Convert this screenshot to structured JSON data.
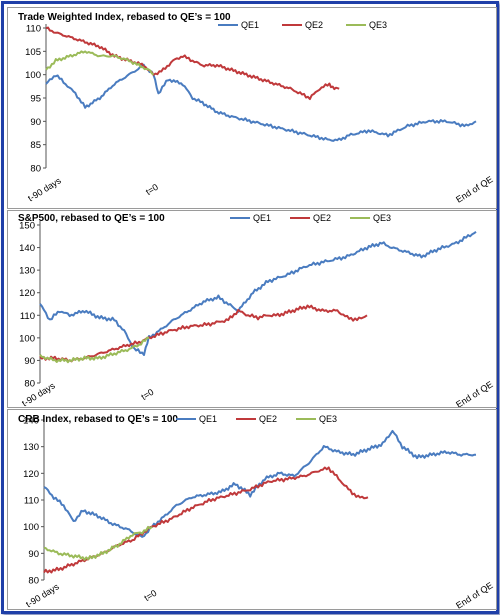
{
  "colors": {
    "QE1": "#4a7cc0",
    "QE2": "#c0393b",
    "QE3": "#9bbb59",
    "frame": "#1f3fa8"
  },
  "chart_data": [
    {
      "type": "line",
      "title": "Trade Weighted Index, rebased to QE’s = 100",
      "legend": [
        "QE1",
        "QE2",
        "QE3"
      ],
      "legend_position": "top",
      "ylim": [
        80,
        110
      ],
      "yticks": [
        80,
        85,
        90,
        95,
        100,
        105,
        110
      ],
      "x_tick_labels": [
        "t-90 days",
        "t=0",
        "End of QE"
      ],
      "grid": false,
      "series": [
        {
          "name": "QE1",
          "points": [
            [
              0,
              98
            ],
            [
              10,
              100
            ],
            [
              20,
              98
            ],
            [
              30,
              96
            ],
            [
              40,
              93
            ],
            [
              55,
              95
            ],
            [
              70,
              98
            ],
            [
              85,
              100
            ],
            [
              100,
              102
            ],
            [
              110,
              100
            ],
            [
              115,
              96
            ],
            [
              125,
              99
            ],
            [
              140,
              98
            ],
            [
              150,
              95
            ],
            [
              160,
              94
            ],
            [
              175,
              92
            ],
            [
              190,
              91
            ],
            [
              210,
              90
            ],
            [
              230,
              89
            ],
            [
              250,
              88
            ],
            [
              270,
              87
            ],
            [
              290,
              86
            ],
            [
              300,
              86
            ],
            [
              310,
              87
            ],
            [
              330,
              88
            ],
            [
              350,
              87
            ],
            [
              370,
              89
            ],
            [
              390,
              90
            ],
            [
              410,
              90
            ],
            [
              430,
              89
            ],
            [
              440,
              90
            ]
          ]
        },
        {
          "name": "QE2",
          "points": [
            [
              0,
              110
            ],
            [
              10,
              109
            ],
            [
              25,
              108
            ],
            [
              40,
              107
            ],
            [
              55,
              106
            ],
            [
              70,
              104
            ],
            [
              85,
              103
            ],
            [
              100,
              102
            ],
            [
              110,
              100
            ],
            [
              120,
              101
            ],
            [
              130,
              103
            ],
            [
              140,
              104
            ],
            [
              150,
              103
            ],
            [
              160,
              102
            ],
            [
              175,
              102
            ],
            [
              190,
              101
            ],
            [
              205,
              100
            ],
            [
              220,
              99
            ],
            [
              235,
              98
            ],
            [
              250,
              97
            ],
            [
              260,
              96
            ],
            [
              270,
              95
            ],
            [
              280,
              97
            ],
            [
              290,
              98
            ],
            [
              295,
              97
            ],
            [
              300,
              97
            ]
          ]
        },
        {
          "name": "QE3",
          "points": [
            [
              0,
              101
            ],
            [
              10,
              103
            ],
            [
              25,
              104
            ],
            [
              40,
              105
            ],
            [
              55,
              104
            ],
            [
              70,
              104
            ],
            [
              85,
              103
            ],
            [
              95,
              102
            ],
            [
              105,
              101
            ],
            [
              110,
              100
            ]
          ]
        }
      ]
    },
    {
      "type": "line",
      "title": "S&P500, rebased to QE’s = 100",
      "legend": [
        "QE1",
        "QE2",
        "QE3"
      ],
      "legend_position": "top",
      "ylim": [
        80,
        150
      ],
      "yticks": [
        80,
        90,
        100,
        110,
        120,
        130,
        140,
        150
      ],
      "x_tick_labels": [
        "t-90 days",
        "t=0",
        "End of QE"
      ],
      "grid": false,
      "series": [
        {
          "name": "QE1",
          "points": [
            [
              0,
              115
            ],
            [
              10,
              108
            ],
            [
              20,
              112
            ],
            [
              30,
              110
            ],
            [
              45,
              112
            ],
            [
              60,
              109
            ],
            [
              75,
              108
            ],
            [
              85,
              103
            ],
            [
              95,
              95
            ],
            [
              105,
              93
            ],
            [
              110,
              100
            ],
            [
              120,
              103
            ],
            [
              135,
              108
            ],
            [
              150,
              112
            ],
            [
              165,
              116
            ],
            [
              180,
              118
            ],
            [
              200,
              112
            ],
            [
              215,
              120
            ],
            [
              230,
              125
            ],
            [
              250,
              128
            ],
            [
              270,
              132
            ],
            [
              290,
              134
            ],
            [
              310,
              136
            ],
            [
              330,
              140
            ],
            [
              345,
              142
            ],
            [
              355,
              140
            ],
            [
              370,
              138
            ],
            [
              385,
              136
            ],
            [
              400,
              139
            ],
            [
              420,
              142
            ],
            [
              440,
              147
            ]
          ]
        },
        {
          "name": "QE2",
          "points": [
            [
              0,
              91
            ],
            [
              15,
              91
            ],
            [
              30,
              90
            ],
            [
              45,
              91
            ],
            [
              60,
              93
            ],
            [
              75,
              95
            ],
            [
              90,
              97
            ],
            [
              100,
              98
            ],
            [
              110,
              100
            ],
            [
              130,
              103
            ],
            [
              150,
              105
            ],
            [
              170,
              106
            ],
            [
              190,
              108
            ],
            [
              200,
              112
            ],
            [
              210,
              110
            ],
            [
              220,
              109
            ],
            [
              230,
              110
            ],
            [
              240,
              110
            ],
            [
              255,
              112
            ],
            [
              270,
              114
            ],
            [
              285,
              112
            ],
            [
              300,
              112
            ],
            [
              310,
              109
            ],
            [
              320,
              108
            ],
            [
              330,
              110
            ]
          ]
        },
        {
          "name": "QE3",
          "points": [
            [
              0,
              92
            ],
            [
              15,
              90
            ],
            [
              30,
              90
            ],
            [
              45,
              91
            ],
            [
              60,
              91
            ],
            [
              75,
              93
            ],
            [
              90,
              95
            ],
            [
              100,
              97
            ],
            [
              110,
              100
            ]
          ]
        }
      ]
    },
    {
      "type": "line",
      "title": "CRB Index, rebased to QE’s = 100",
      "legend": [
        "QE1",
        "QE2",
        "QE3"
      ],
      "legend_position": "top",
      "ylim": [
        80,
        140
      ],
      "yticks": [
        80,
        90,
        100,
        110,
        120,
        130,
        140
      ],
      "x_tick_labels": [
        "t-90 days",
        "t=0",
        "End of QE"
      ],
      "grid": false,
      "series": [
        {
          "name": "QE1",
          "points": [
            [
              0,
              115
            ],
            [
              10,
              111
            ],
            [
              20,
              108
            ],
            [
              30,
              102
            ],
            [
              40,
              106
            ],
            [
              55,
              104
            ],
            [
              70,
              101
            ],
            [
              85,
              99
            ],
            [
              100,
              96
            ],
            [
              110,
              100
            ],
            [
              120,
              103
            ],
            [
              135,
              108
            ],
            [
              150,
              111
            ],
            [
              165,
              112
            ],
            [
              180,
              113
            ],
            [
              195,
              116
            ],
            [
              210,
              112
            ],
            [
              225,
              118
            ],
            [
              240,
              120
            ],
            [
              255,
              119
            ],
            [
              270,
              124
            ],
            [
              285,
              130
            ],
            [
              300,
              128
            ],
            [
              315,
              127
            ],
            [
              330,
              129
            ],
            [
              345,
              131
            ],
            [
              355,
              136
            ],
            [
              365,
              130
            ],
            [
              380,
              126
            ],
            [
              395,
              127
            ],
            [
              410,
              128
            ],
            [
              425,
              127
            ],
            [
              440,
              127
            ]
          ]
        },
        {
          "name": "QE2",
          "points": [
            [
              0,
              83
            ],
            [
              15,
              84
            ],
            [
              30,
              86
            ],
            [
              45,
              88
            ],
            [
              60,
              90
            ],
            [
              75,
              93
            ],
            [
              90,
              95
            ],
            [
              110,
              100
            ],
            [
              130,
              103
            ],
            [
              150,
              107
            ],
            [
              170,
              110
            ],
            [
              190,
              112
            ],
            [
              210,
              114
            ],
            [
              230,
              117
            ],
            [
              250,
              118
            ],
            [
              265,
              119
            ],
            [
              280,
              121
            ],
            [
              290,
              122
            ],
            [
              300,
              118
            ],
            [
              310,
              114
            ],
            [
              320,
              111
            ],
            [
              330,
              111
            ]
          ]
        },
        {
          "name": "QE3",
          "points": [
            [
              0,
              92
            ],
            [
              15,
              90
            ],
            [
              30,
              89
            ],
            [
              45,
              88
            ],
            [
              60,
              90
            ],
            [
              75,
              93
            ],
            [
              90,
              97
            ],
            [
              100,
              98
            ],
            [
              110,
              100
            ]
          ]
        }
      ]
    }
  ]
}
